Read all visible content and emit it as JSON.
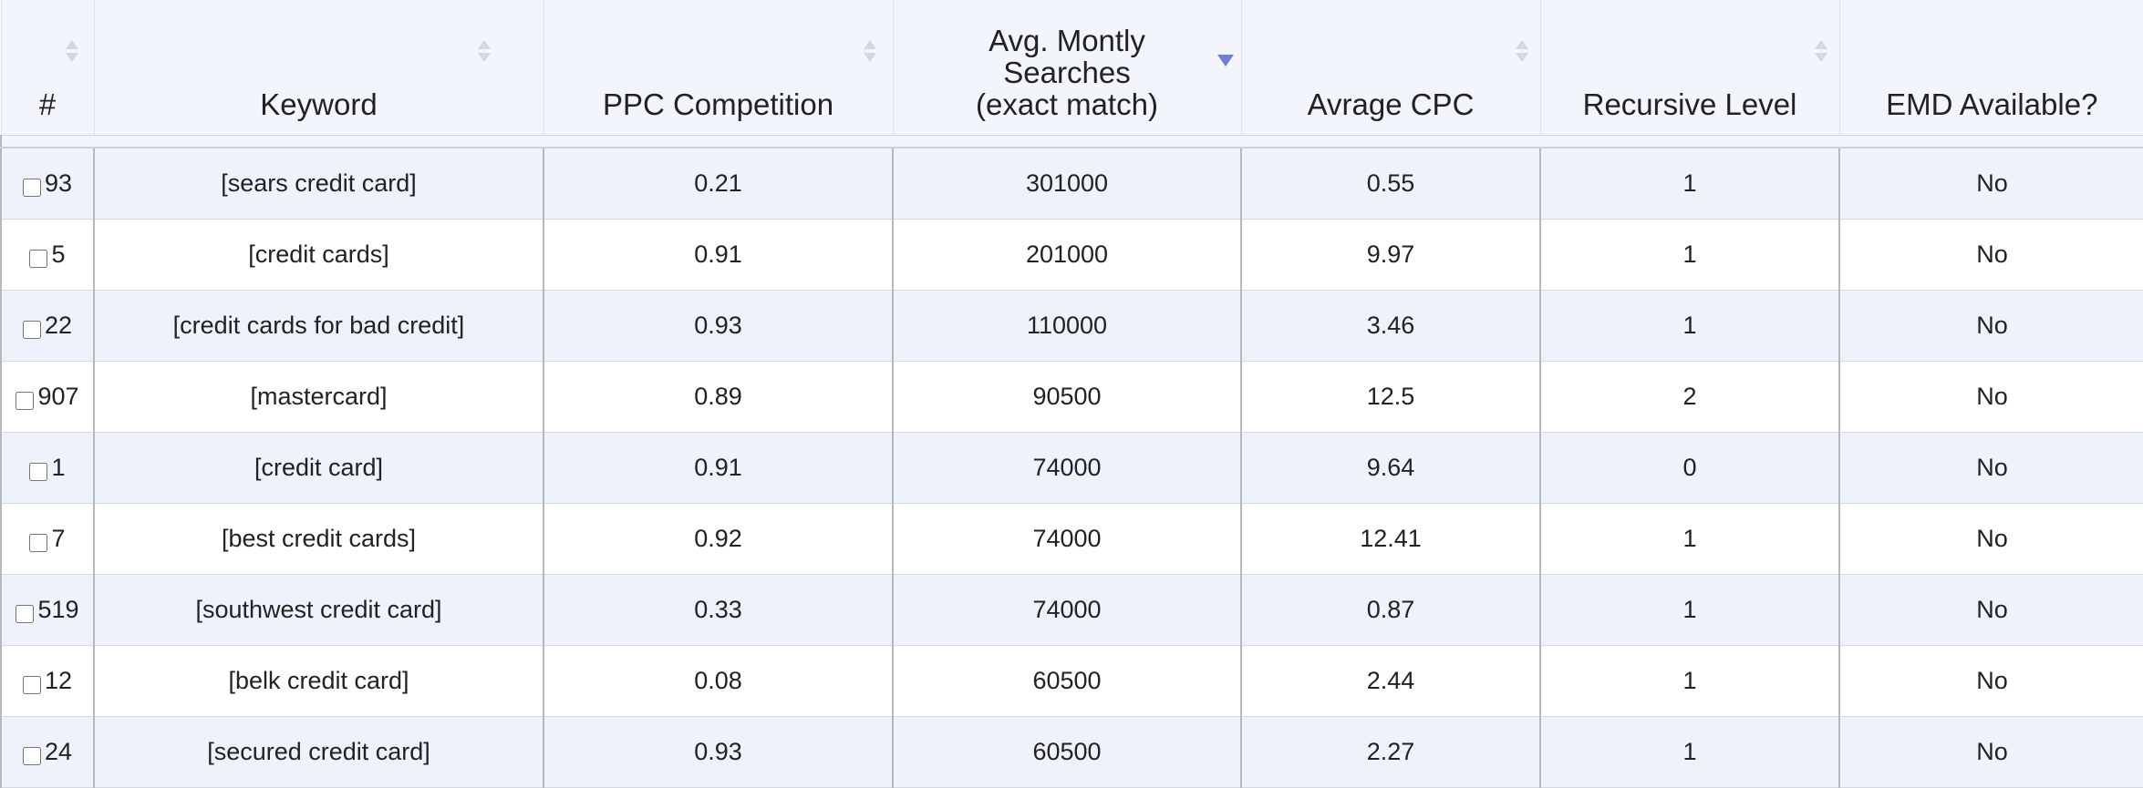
{
  "table": {
    "columns": [
      [
        "#"
      ],
      [
        "Keyword"
      ],
      [
        "PPC Competition"
      ],
      [
        "Avg. Montly",
        "Searches",
        "(exact match)"
      ],
      [
        "Avrage CPC"
      ],
      [
        "Recursive Level"
      ],
      [
        "EMD Available?"
      ]
    ],
    "rows": [
      [
        "93",
        "[sears credit card]",
        "0.21",
        "301000",
        "0.55",
        "1",
        "No"
      ],
      [
        "5",
        "[credit cards]",
        "0.91",
        "201000",
        "9.97",
        "1",
        "No"
      ],
      [
        "22",
        "[credit cards for bad credit]",
        "0.93",
        "110000",
        "3.46",
        "1",
        "No"
      ],
      [
        "907",
        "[mastercard]",
        "0.89",
        "90500",
        "12.5",
        "2",
        "No"
      ],
      [
        "1",
        "[credit card]",
        "0.91",
        "74000",
        "9.64",
        "0",
        "No"
      ],
      [
        "7",
        "[best credit cards]",
        "0.92",
        "74000",
        "12.41",
        "1",
        "No"
      ],
      [
        "519",
        "[southwest credit card]",
        "0.33",
        "74000",
        "0.87",
        "1",
        "No"
      ],
      [
        "12",
        "[belk credit card]",
        "0.08",
        "60500",
        "2.44",
        "1",
        "No"
      ],
      [
        "24",
        "[secured credit card]",
        "0.93",
        "60500",
        "2.27",
        "1",
        "No"
      ]
    ]
  }
}
